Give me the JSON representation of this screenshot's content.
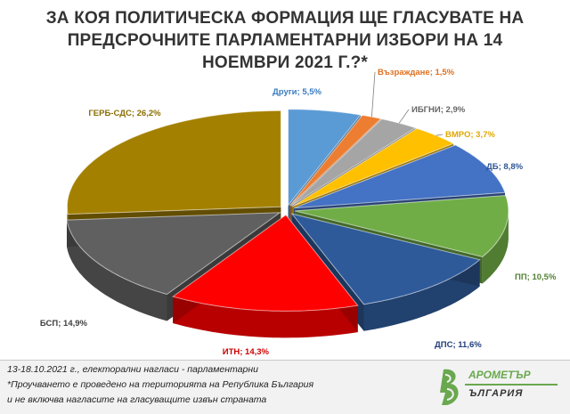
{
  "title_lines": [
    "ЗА КОЯ ПОЛИТИЧЕСКА ФОРМАЦИЯ ЩЕ ГЛАСУВАТЕ НА",
    "ПРЕДСРОЧНИТЕ ПАРЛАМЕНТАРНИ ИЗБОРИ НА 14",
    "НОЕМВРИ 2021 Г.?*"
  ],
  "chart_data": {
    "type": "pie",
    "style": "3d-exploded",
    "title": "ЗА КОЯ ПОЛИТИЧЕСКА ФОРМАЦИЯ ЩЕ ГЛАСУВАТЕ НА ПРЕДСРОЧНИТЕ ПАРЛАМЕНТАРНИ ИЗБОРИ НА 14 НОЕМВРИ 2021 Г.?*",
    "slices": [
      {
        "name": "Други",
        "value": 5.5,
        "label": "Други; 5,5%",
        "color": "#5b9bd5",
        "label_color": "#3a7cc0"
      },
      {
        "name": "Възраждане",
        "value": 1.5,
        "label": "Възраждане; 1,5%",
        "color": "#ed7d31",
        "label_color": "#e07020"
      },
      {
        "name": "ИБГНИ",
        "value": 2.9,
        "label": "ИБГНИ; 2,9%",
        "color": "#a5a5a5",
        "label_color": "#666666"
      },
      {
        "name": "ВМРО",
        "value": 3.7,
        "label": "ВМРО; 3,7%",
        "color": "#ffc000",
        "label_color": "#e0a800"
      },
      {
        "name": "ДБ",
        "value": 8.8,
        "label": "ДБ; 8,8%",
        "color": "#4472c4",
        "label_color": "#2f5597"
      },
      {
        "name": "ПП",
        "value": 10.5,
        "label": "ПП; 10,5%",
        "color": "#70ad47",
        "label_color": "#548235"
      },
      {
        "name": "ДПС",
        "value": 11.6,
        "label": "ДПС; 11,6%",
        "color": "#2e5a9a",
        "label_color": "#1f3d7a"
      },
      {
        "name": "ИТН",
        "value": 14.3,
        "label": "ИТН; 14,3%",
        "color": "#ff0000",
        "label_color": "#cc0000"
      },
      {
        "name": "БСП",
        "value": 14.9,
        "label": "БСП; 14,9%",
        "color": "#606060",
        "label_color": "#404040"
      },
      {
        "name": "ГЕРБ-СДС",
        "value": 26.2,
        "label": "ГЕРБ-СДС; 26,2%",
        "color": "#a48000",
        "label_color": "#8a6d00"
      }
    ]
  },
  "footer": {
    "line1": "13-18.10.2021  г., електорални нагласи - парламентарни",
    "line2": "*Проучването е проведено на територията на Република България",
    "line3": "и не включва нагласите на гласуващите извън страната"
  },
  "logo": {
    "text_top": "АРОМЕТЪР",
    "text_bottom": "ЪЛГАРИЯ",
    "color": "#6aa84f"
  }
}
